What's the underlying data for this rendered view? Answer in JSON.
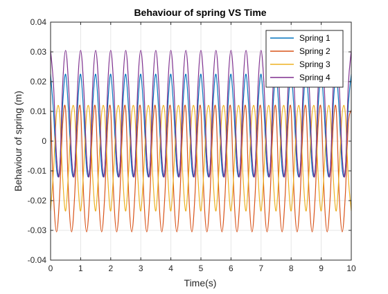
{
  "chart_data": {
    "type": "line",
    "title": "Behaviour of spring VS Time",
    "xlabel": "Time(s)",
    "ylabel": "Behaviour of spring (m)",
    "xlim": [
      0,
      10
    ],
    "ylim": [
      -0.04,
      0.04
    ],
    "x_ticks": [
      0,
      1,
      2,
      3,
      4,
      5,
      6,
      7,
      8,
      9,
      10
    ],
    "x_tick_labels": [
      "0",
      "1",
      "2",
      "3",
      "4",
      "5",
      "6",
      "7",
      "8",
      "9",
      "10"
    ],
    "y_ticks": [
      -0.04,
      -0.03,
      -0.02,
      -0.01,
      0,
      0.01,
      0.02,
      0.03,
      0.04
    ],
    "y_tick_labels": [
      "-0.04",
      "-0.03",
      "-0.02",
      "-0.01",
      "0",
      "0.01",
      "0.02",
      "0.03",
      "0.04"
    ],
    "grid": true,
    "legend_position": "top-right",
    "x": [
      0,
      0.1,
      0.2,
      0.3,
      0.4,
      0.5,
      0.6,
      0.7,
      0.8,
      0.9,
      1.0,
      1.1,
      1.2,
      1.3,
      1.4,
      1.5,
      1.6,
      1.7,
      1.8,
      1.9,
      2.0,
      2.1,
      2.2,
      2.3,
      2.4,
      2.5,
      2.6,
      2.7,
      2.8,
      2.9,
      3.0,
      3.1,
      3.2,
      3.3,
      3.4,
      3.5,
      3.6,
      3.7,
      3.8,
      3.9,
      4.0,
      4.1,
      4.2,
      4.3,
      4.4,
      4.5,
      4.6,
      4.7,
      4.8,
      4.9,
      5.0,
      5.1,
      5.2,
      5.3,
      5.4,
      5.5,
      5.6,
      5.7,
      5.8,
      5.9,
      6.0,
      6.1,
      6.2,
      6.3,
      6.4,
      6.5,
      6.6,
      6.7,
      6.8,
      6.9,
      7.0,
      7.1,
      7.2,
      7.3,
      7.4,
      7.5,
      7.6,
      7.7,
      7.8,
      7.9,
      8.0,
      8.1,
      8.2,
      8.3,
      8.4,
      8.5,
      8.6,
      8.7,
      8.8,
      8.9,
      9.0,
      9.1,
      9.2,
      9.3,
      9.4,
      9.5,
      9.6,
      9.7,
      9.8,
      9.9,
      10.0
    ],
    "series": [
      {
        "name": "Spring 1",
        "color": "#0072BD",
        "values": [
          0.0225,
          0.0095,
          -0.0095,
          -0.0095,
          0.012,
          0.0225,
          0.0095,
          -0.0095,
          -0.0095,
          0.012,
          0.0225,
          0.0095,
          -0.0095,
          -0.0095,
          0.012,
          0.0225,
          0.0095,
          -0.0095,
          -0.0095,
          0.012,
          0.0225,
          0.0095,
          -0.0095,
          -0.0095,
          0.012,
          0.0225,
          0.0095,
          -0.0095,
          -0.0095,
          0.012,
          0.0225,
          0.0095,
          -0.0095,
          -0.0095,
          0.012,
          0.0225,
          0.0095,
          -0.0095,
          -0.0095,
          0.012,
          0.0225,
          0.0095,
          -0.0095,
          -0.0095,
          0.012,
          0.0225,
          0.0095,
          -0.0095,
          -0.0095,
          0.012,
          0.0225,
          0.0095,
          -0.0095,
          -0.0095,
          0.012,
          0.0225,
          0.0095,
          -0.0095,
          -0.0095,
          0.012,
          0.0225,
          0.0095,
          -0.0095,
          -0.0095,
          0.012,
          0.0225,
          0.0095,
          -0.0095,
          -0.0095,
          0.012,
          0.0225,
          0.0095,
          -0.0095,
          -0.0095,
          0.012,
          0.0225,
          0.0095,
          -0.0095,
          -0.0095,
          0.012,
          0.0225,
          0.0095,
          -0.0095,
          -0.0095,
          0.012,
          0.0225,
          0.0095,
          -0.0095,
          -0.0095,
          0.012,
          0.0225,
          0.0095,
          -0.0095,
          -0.0095,
          0.012,
          0.0225,
          0.0095,
          -0.0095,
          -0.0095,
          0.012,
          0.0225
        ]
      },
      {
        "name": "Spring 2",
        "color": "#D95319",
        "values": [
          0.0105,
          -0.0185,
          -0.0305,
          -0.0185,
          0.0055,
          0.0105,
          -0.0185,
          -0.0305,
          -0.0185,
          0.0055,
          0.0105,
          -0.0185,
          -0.0305,
          -0.0185,
          0.0055,
          0.0105,
          -0.0185,
          -0.0305,
          -0.0185,
          0.0055,
          0.0105,
          -0.0185,
          -0.0305,
          -0.0185,
          0.0055,
          0.0105,
          -0.0185,
          -0.0305,
          -0.0185,
          0.0055,
          0.0105,
          -0.0185,
          -0.0305,
          -0.0185,
          0.0055,
          0.0105,
          -0.0185,
          -0.0305,
          -0.0185,
          0.0055,
          0.0105,
          -0.0185,
          -0.0305,
          -0.0185,
          0.0055,
          0.0105,
          -0.0185,
          -0.0305,
          -0.0185,
          0.0055,
          0.0105,
          -0.0185,
          -0.0305,
          -0.0185,
          0.0055,
          0.0105,
          -0.0185,
          -0.0305,
          -0.0185,
          0.0055,
          0.0105,
          -0.0185,
          -0.0305,
          -0.0185,
          0.0055,
          0.0105,
          -0.0185,
          -0.0305,
          -0.0185,
          0.0055,
          0.0105,
          -0.0185,
          -0.0305,
          -0.0185,
          0.0055,
          0.0105,
          -0.0185,
          -0.0305,
          -0.0185,
          0.0055,
          0.0105,
          -0.0185,
          -0.0305,
          -0.0185,
          0.0055,
          0.0105,
          -0.0185,
          -0.0305,
          -0.0185,
          0.0055,
          0.0105,
          -0.0185,
          -0.0305,
          -0.0185,
          0.0055,
          0.0105,
          -0.0185,
          -0.0305,
          -0.0185,
          0.0055,
          0.0105
        ]
      },
      {
        "name": "Spring 3",
        "color": "#EDB120",
        "values": [
          -0.0235,
          -0.0095,
          0.0095,
          0.0095,
          -0.012,
          -0.0235,
          -0.0095,
          0.0095,
          0.0095,
          -0.012,
          -0.0235,
          -0.0095,
          0.0095,
          0.0095,
          -0.012,
          -0.0235,
          -0.0095,
          0.0095,
          0.0095,
          -0.012,
          -0.0235,
          -0.0095,
          0.0095,
          0.0095,
          -0.012,
          -0.0235,
          -0.0095,
          0.0095,
          0.0095,
          -0.012,
          -0.0235,
          -0.0095,
          0.0095,
          0.0095,
          -0.012,
          -0.0235,
          -0.0095,
          0.0095,
          0.0095,
          -0.012,
          -0.0235,
          -0.0095,
          0.0095,
          0.0095,
          -0.012,
          -0.0235,
          -0.0095,
          0.0095,
          0.0095,
          -0.012,
          -0.0235,
          -0.0095,
          0.0095,
          0.0095,
          -0.012,
          -0.0235,
          -0.0095,
          0.0095,
          0.0095,
          -0.012,
          -0.0235,
          -0.0095,
          0.0095,
          0.0095,
          -0.012,
          -0.0235,
          -0.0095,
          0.0095,
          0.0095,
          -0.012,
          -0.0235,
          -0.0095,
          0.0095,
          0.0095,
          -0.012,
          -0.0235,
          -0.0095,
          0.0095,
          0.0095,
          -0.012,
          -0.0235,
          -0.0095,
          0.0095,
          0.0095,
          -0.012,
          -0.0235,
          -0.0095,
          0.0095,
          0.0095,
          -0.012,
          -0.0235,
          -0.0095,
          0.0095,
          0.0095,
          -0.012,
          -0.0235,
          -0.0095,
          0.0095,
          0.0095,
          -0.012,
          -0.0235
        ]
      },
      {
        "name": "Spring 4",
        "color": "#7E2F8E",
        "values": [
          0.0305,
          0.0185,
          -0.0055,
          -0.0105,
          0.0185,
          0.0305,
          0.0185,
          -0.0055,
          -0.0105,
          0.0185,
          0.0305,
          0.0185,
          -0.0055,
          -0.0105,
          0.0185,
          0.0305,
          0.0185,
          -0.0055,
          -0.0105,
          0.0185,
          0.0305,
          0.0185,
          -0.0055,
          -0.0105,
          0.0185,
          0.0305,
          0.0185,
          -0.0055,
          -0.0105,
          0.0185,
          0.0305,
          0.0185,
          -0.0055,
          -0.0105,
          0.0185,
          0.0305,
          0.0185,
          -0.0055,
          -0.0105,
          0.0185,
          0.0305,
          0.0185,
          -0.0055,
          -0.0105,
          0.0185,
          0.0305,
          0.0185,
          -0.0055,
          -0.0105,
          0.0185,
          0.0305,
          0.0185,
          -0.0055,
          -0.0105,
          0.0185,
          0.0305,
          0.0185,
          -0.0055,
          -0.0105,
          0.0185,
          0.0305,
          0.0185,
          -0.0055,
          -0.0105,
          0.0185,
          0.0305,
          0.0185,
          -0.0055,
          -0.0105,
          0.0185,
          0.0305,
          0.0185,
          -0.0055,
          -0.0105,
          0.0185,
          0.0305,
          0.0185,
          -0.0055,
          -0.0105,
          0.0185,
          0.0305,
          0.0185,
          -0.0055,
          -0.0105,
          0.0185,
          0.0305,
          0.0185,
          -0.0055,
          -0.0105,
          0.0185,
          0.0305,
          0.0185,
          -0.0055,
          -0.0105,
          0.0185,
          0.0305,
          0.0185,
          -0.0055,
          -0.0105,
          0.0185,
          0.0305
        ]
      }
    ]
  },
  "colors": {
    "background": "#ffffff",
    "axes_border": "#262626",
    "grid": "#e6e6e6",
    "text": "#262626"
  }
}
